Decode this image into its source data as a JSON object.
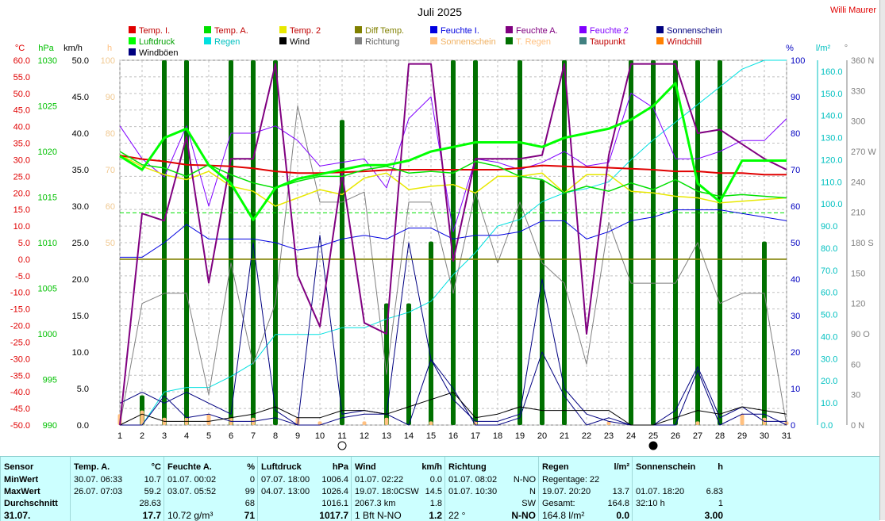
{
  "title": "Juli 2025",
  "author": "Willi Maurer",
  "axis_units": {
    "temp": "°C",
    "hpa": "hPa",
    "kmh": "km/h",
    "h": "h",
    "pct": "%",
    "rain": "l/m²",
    "dir": "°"
  },
  "colors": {
    "temp_i": "#e00000",
    "temp_a": "#00e000",
    "temp_2": "#e8e800",
    "diff_temp": "#808000",
    "feuchte_i": "#0000e0",
    "feuchte_a": "#800080",
    "feuchte_2": "#8000ff",
    "sonnenschein": "#000080",
    "luftdruck": "#00ff00",
    "regen": "#00e0e0",
    "wind": "#000000",
    "richtung": "#808080",
    "sonnenschein_bar": "#ffc080",
    "t_regen": "#007000",
    "taupunkt": "#408080",
    "windchill": "#ff8000",
    "windboeen": "#000080"
  },
  "chart_data": {
    "type": "line",
    "title": "Juli 2025",
    "x": [
      1,
      2,
      3,
      4,
      5,
      6,
      7,
      8,
      9,
      10,
      11,
      12,
      13,
      14,
      15,
      16,
      17,
      18,
      19,
      20,
      21,
      22,
      23,
      24,
      25,
      26,
      27,
      28,
      29,
      30,
      31
    ],
    "axes": {
      "temp": {
        "label": "°C",
        "range": [
          -50,
          60
        ],
        "ticks": [
          "60.0",
          "55.0",
          "50.0",
          "45.0",
          "40.0",
          "35.0",
          "30.0",
          "25.0",
          "20.0",
          "15.0",
          "10.0",
          "5.0",
          "0.0",
          "-5.0",
          "-10.0",
          "-15.0",
          "-20.0",
          "-25.0",
          "-30.0",
          "-35.0",
          "-40.0",
          "-45.0",
          "-50.0"
        ]
      },
      "hpa": {
        "label": "hPa",
        "range": [
          990,
          1030
        ],
        "ticks": [
          "1030",
          "1025",
          "1020",
          "1015",
          "1010",
          "1005",
          "1000",
          "995",
          "990"
        ]
      },
      "kmh": {
        "label": "km/h",
        "range": [
          0,
          50
        ],
        "ticks": [
          "50.0",
          "45.0",
          "40.0",
          "35.0",
          "30.0",
          "25.0",
          "20.0",
          "15.0",
          "10.0",
          "5.0",
          "0.0"
        ]
      },
      "h": {
        "label": "h",
        "range": [
          0,
          100
        ],
        "ticks": [
          "100",
          "90",
          "80",
          "70",
          "60",
          "50"
        ]
      },
      "pct": {
        "label": "%",
        "range": [
          0,
          100
        ],
        "ticks": [
          "100",
          "90",
          "80",
          "70",
          "60",
          "50",
          "40",
          "30",
          "20",
          "10",
          "0"
        ]
      },
      "rain": {
        "label": "l/m²",
        "range": [
          0,
          165
        ],
        "ticks": [
          "160.0",
          "150.0",
          "140.0",
          "130.0",
          "120.0",
          "110.0",
          "100.0",
          "90.0",
          "80.0",
          "70.0",
          "60.0",
          "50.0",
          "40.0",
          "30.0",
          "20.0",
          "10.0",
          "0.0"
        ]
      },
      "dir": {
        "label": "°",
        "range": [
          0,
          360
        ],
        "ticks": [
          "360 N",
          "330",
          "300",
          "270 W",
          "240",
          "210",
          "180 S",
          "150",
          "120",
          "90 O",
          "60",
          "30",
          "0 N"
        ]
      }
    },
    "legend": [
      {
        "name": "Temp. I.",
        "color": "#e00000"
      },
      {
        "name": "Temp. A.",
        "color": "#00e000"
      },
      {
        "name": "Temp. 2",
        "color": "#e8e800"
      },
      {
        "name": "Diff Temp.",
        "color": "#808000"
      },
      {
        "name": "Feuchte I.",
        "color": "#0000e0"
      },
      {
        "name": "Feuchte A.",
        "color": "#800080"
      },
      {
        "name": "Feuchte 2",
        "color": "#8000ff"
      },
      {
        "name": "Sonnenschein",
        "color": "#000080"
      },
      {
        "name": "Luftdruck",
        "color": "#00ff00"
      },
      {
        "name": "Regen",
        "color": "#00e0e0"
      },
      {
        "name": "Wind",
        "color": "#000000"
      },
      {
        "name": "Richtung",
        "color": "#808080"
      },
      {
        "name": "Sonnenschein",
        "color": "#ffc080"
      },
      {
        "name": "T. Regen",
        "color": "#007000"
      },
      {
        "name": "Taupunkt",
        "color": "#408080"
      },
      {
        "name": "Windchill",
        "color": "#ff8000"
      },
      {
        "name": "Windböen",
        "color": "#000080"
      }
    ],
    "series": [
      {
        "name": "Temp. I.",
        "axis": "temp",
        "color": "#e00000",
        "width": 2,
        "values": [
          31.3,
          30.2,
          29.5,
          28.5,
          28.3,
          28.0,
          27.4,
          26.5,
          26.0,
          26.0,
          26.2,
          26.5,
          26.9,
          27.0,
          27.0,
          27.0,
          27.0,
          27.0,
          27.5,
          28.3,
          28.0,
          27.8,
          27.6,
          27.3,
          27.0,
          26.5,
          26.5,
          26.0,
          26.0,
          25.5,
          25.5
        ]
      },
      {
        "name": "Temp. A.",
        "axis": "temp",
        "color": "#00e000",
        "width": 1.5,
        "values": [
          32.5,
          28.5,
          27.5,
          25.0,
          28.5,
          25.5,
          23.0,
          21.5,
          23.5,
          25.0,
          25.0,
          27.0,
          28.0,
          26.0,
          26.5,
          26.0,
          29.5,
          28.0,
          25.0,
          24.0,
          20.0,
          22.0,
          20.5,
          23.0,
          21.0,
          24.0,
          20.5,
          19.0,
          19.5,
          19.0,
          18.5
        ]
      },
      {
        "name": "Temp. 2",
        "axis": "temp",
        "color": "#e8e800",
        "width": 1.5,
        "values": [
          31.5,
          28.0,
          25.5,
          24.0,
          26.5,
          22.0,
          20.5,
          16.0,
          18.5,
          21.0,
          19.5,
          24.5,
          26.0,
          21.0,
          22.0,
          22.5,
          20.0,
          25.0,
          25.0,
          26.0,
          20.0,
          25.5,
          25.5,
          20.5,
          20.0,
          19.0,
          18.5,
          17.0,
          17.5,
          18.0,
          18.5
        ]
      },
      {
        "name": "Diff Temp.",
        "axis": "temp",
        "color": "#808000",
        "width": 1.5,
        "values": [
          0.0,
          0.0,
          0.0,
          0.0,
          0.0,
          0.0,
          0.0,
          0.0,
          0.0,
          0.0,
          0.0,
          0.0,
          0.0,
          0.0,
          0.0,
          0.0,
          0.0,
          0.0,
          0.0,
          0.0,
          0.0,
          0.0,
          0.0,
          0.0,
          0.0,
          0.0,
          0.0,
          0.0,
          0.0,
          0.0,
          0.0
        ]
      },
      {
        "name": "Feuchte I.",
        "axis": "pct",
        "color": "#0000e0",
        "width": 1,
        "values": [
          46,
          46,
          50,
          55,
          51,
          51,
          51,
          50,
          48,
          49,
          51,
          52,
          51,
          54,
          54,
          51,
          52,
          52,
          53,
          56,
          56,
          51,
          53,
          56,
          57,
          59,
          59,
          59,
          58,
          57,
          56
        ]
      },
      {
        "name": "Feuchte A.",
        "axis": "pct",
        "color": "#800080",
        "width": 2,
        "values": [
          0,
          58,
          56,
          79,
          39,
          73,
          73,
          99,
          41,
          27,
          69,
          28,
          25,
          99,
          99,
          45,
          73,
          73,
          73,
          74,
          99,
          25,
          74,
          99,
          99,
          99,
          80,
          81,
          77,
          73,
          70
        ]
      },
      {
        "name": "Feuchte 2",
        "axis": "pct",
        "color": "#8000ff",
        "width": 1,
        "values": [
          82,
          73,
          68,
          82,
          60,
          80,
          80,
          82,
          78,
          71,
          72,
          73,
          65,
          84,
          90,
          53,
          73,
          72,
          70,
          72,
          75,
          71,
          72,
          91,
          87,
          73,
          73,
          75,
          78,
          78,
          84
        ]
      },
      {
        "name": "Sonnenschein",
        "axis": "pct",
        "color": "#000080",
        "width": 1,
        "values": [
          0,
          0,
          8,
          2,
          3,
          1,
          1,
          2,
          0,
          0,
          2,
          3,
          3,
          0,
          18,
          10,
          0,
          0,
          2,
          20,
          8,
          0,
          2,
          0,
          0,
          0,
          15,
          0,
          3,
          3,
          0
        ]
      },
      {
        "name": "Luftdruck",
        "axis": "hpa",
        "color": "#00ff00",
        "width": 3,
        "values": [
          1019.5,
          1018.0,
          1021.5,
          1022.5,
          1018.5,
          1016.5,
          1012.5,
          1016.0,
          1017.0,
          1017.5,
          1018.0,
          1018.5,
          1018.5,
          1019.0,
          1020.0,
          1020.5,
          1021.0,
          1021.0,
          1021.0,
          1020.5,
          1021.5,
          1022.0,
          1022.5,
          1023.5,
          1025.0,
          1027.5,
          1016.5,
          1014.5,
          1019.0,
          1019.0,
          1019.0
        ]
      },
      {
        "name": "Regen",
        "axis": "rain",
        "color": "#00e0e0",
        "width": 1,
        "values": [
          0.0,
          0.0,
          15.0,
          17.0,
          17.0,
          22.0,
          28.0,
          41.0,
          41.0,
          41.0,
          44.0,
          44.0,
          48.0,
          51.0,
          56.0,
          68.0,
          78.0,
          90.0,
          93.0,
          101.0,
          105.0,
          107.0,
          110.0,
          120.0,
          129.0,
          137.0,
          145.0,
          153.0,
          161.0,
          165.0,
          165.0
        ]
      },
      {
        "name": "Wind",
        "axis": "kmh",
        "color": "#000000",
        "width": 1,
        "values": [
          0.0,
          1.5,
          0.5,
          0.5,
          0.5,
          1.0,
          1.5,
          2.5,
          1.0,
          1.0,
          2.0,
          2.0,
          1.5,
          2.5,
          3.5,
          4.5,
          1.0,
          1.5,
          2.5,
          2.0,
          2.0,
          2.0,
          2.0,
          0.0,
          0.0,
          1.0,
          2.0,
          1.5,
          2.5,
          2.0,
          1.5
        ]
      },
      {
        "name": "Richtung",
        "axis": "dir",
        "color": "#808080",
        "width": 1,
        "values": [
          0,
          120,
          130,
          130,
          30,
          160,
          60,
          120,
          315,
          220,
          220,
          230,
          50,
          220,
          220,
          130,
          230,
          160,
          220,
          160,
          140,
          60,
          200,
          140,
          140,
          140,
          180,
          120,
          130,
          130,
          0
        ]
      },
      {
        "name": "Windböen",
        "axis": "kmh",
        "color": "#000080",
        "width": 1,
        "values": [
          3.0,
          4.5,
          3.0,
          4.5,
          3.0,
          1.5,
          25.0,
          2.0,
          0.0,
          26.0,
          1.5,
          2.0,
          1.5,
          25.0,
          9.0,
          3.5,
          0.5,
          0.5,
          1.5,
          20.0,
          5.0,
          1.5,
          0.5,
          0.0,
          0.0,
          2.0,
          8.0,
          1.0,
          2.5,
          0.5,
          0.5
        ]
      }
    ],
    "bars": [
      {
        "name": "T. Regen",
        "axis": "rain",
        "color": "#007000",
        "values": [
          0.0,
          13.4,
          165.0,
          165.0,
          0.0,
          165.0,
          165.0,
          165.0,
          0.0,
          0.0,
          138.0,
          0.0,
          55.0,
          55.0,
          83.0,
          165.0,
          165.0,
          0.0,
          165.0,
          111.0,
          165.0,
          0.0,
          0.0,
          165.0,
          165.0,
          165.0,
          165.0,
          165.0,
          0.0,
          83.0,
          0.0
        ]
      },
      {
        "name": "Sonnenschein",
        "axis": "h",
        "color": "#ffc080",
        "values": [
          3,
          4,
          2,
          2,
          3,
          2,
          2,
          0,
          2,
          1,
          0,
          1,
          2,
          0,
          1,
          0,
          1,
          0,
          0,
          0,
          0,
          0,
          1,
          0,
          0,
          0,
          1,
          0,
          3,
          2,
          1
        ]
      }
    ],
    "reference_lines": [
      {
        "axis": "temp",
        "value": 0.0,
        "color": "#808000"
      },
      {
        "axis": "temp",
        "value": 14.0,
        "color": "#00e000",
        "dashed": true
      }
    ],
    "moon_phases": [
      {
        "day": 11,
        "phase": "full"
      },
      {
        "day": 25,
        "phase": "new"
      }
    ]
  },
  "stats": {
    "columns": [
      {
        "key": "sensor",
        "header": "Sensor",
        "rows": [
          "MinWert",
          "MaxWert",
          "Durchschnitt",
          "31.07."
        ]
      },
      {
        "key": "temp",
        "header": "Temp. A.",
        "unit": "°C",
        "rows": [
          {
            "t": "30.07.  06:33",
            "v": "10.7"
          },
          {
            "t": "26.07.  07:03",
            "v": "59.2"
          },
          {
            "t": "",
            "v": "28.63"
          },
          {
            "t": "",
            "v": "17.7"
          }
        ]
      },
      {
        "key": "hum",
        "header": "Feuchte A.",
        "unit": "%",
        "rows": [
          {
            "t": "01.07.  00:02",
            "v": "0"
          },
          {
            "t": "03.07.  05:52",
            "v": "99"
          },
          {
            "t": "",
            "v": "68"
          },
          {
            "t": "10.72 g/m³",
            "v": "71"
          }
        ]
      },
      {
        "key": "press",
        "header": "Luftdruck",
        "unit": "hPa",
        "rows": [
          {
            "t": "07.07.  18:00",
            "v": "1006.4"
          },
          {
            "t": "04.07.  13:00",
            "v": "1026.4"
          },
          {
            "t": "",
            "v": "1016.1"
          },
          {
            "t": "",
            "v": "1017.7"
          }
        ]
      },
      {
        "key": "wind",
        "header": "Wind",
        "unit": "km/h",
        "rows": [
          {
            "t": "01.07.  02:22",
            "v": "0.0"
          },
          {
            "t": "19.07.  18:0CSW",
            "v": "14.5"
          },
          {
            "t": "2067.3 km",
            "v": "1.8"
          },
          {
            "t": "1 Bft N-NO",
            "v": "1.2"
          }
        ]
      },
      {
        "key": "dir",
        "header": "Richtung",
        "unit": "",
        "rows": [
          {
            "t": "01.07.  08:02",
            "v": "N-NO"
          },
          {
            "t": "01.07.  10:30",
            "v": "N"
          },
          {
            "t": "",
            "v": "SW"
          },
          {
            "t": "22 °",
            "v": "N-NO"
          }
        ]
      },
      {
        "key": "rain",
        "header": "Regen",
        "unit": "l/m²",
        "rows": [
          {
            "t": "Regentage: 22",
            "v": ""
          },
          {
            "t": "19.07.  20:20",
            "v": "13.7"
          },
          {
            "t": "Gesamt:",
            "v": "164.8"
          },
          {
            "t": "164.8 l/m²",
            "v": "0.0"
          }
        ]
      },
      {
        "key": "sun",
        "header": "Sonnenschein",
        "unit": "h",
        "rows": [
          {
            "t": "",
            "v": ""
          },
          {
            "t": "01.07.  18:20",
            "v": "6.83"
          },
          {
            "t": "32:10 h",
            "v": "1"
          },
          {
            "t": "",
            "v": "3.00"
          }
        ]
      }
    ]
  }
}
